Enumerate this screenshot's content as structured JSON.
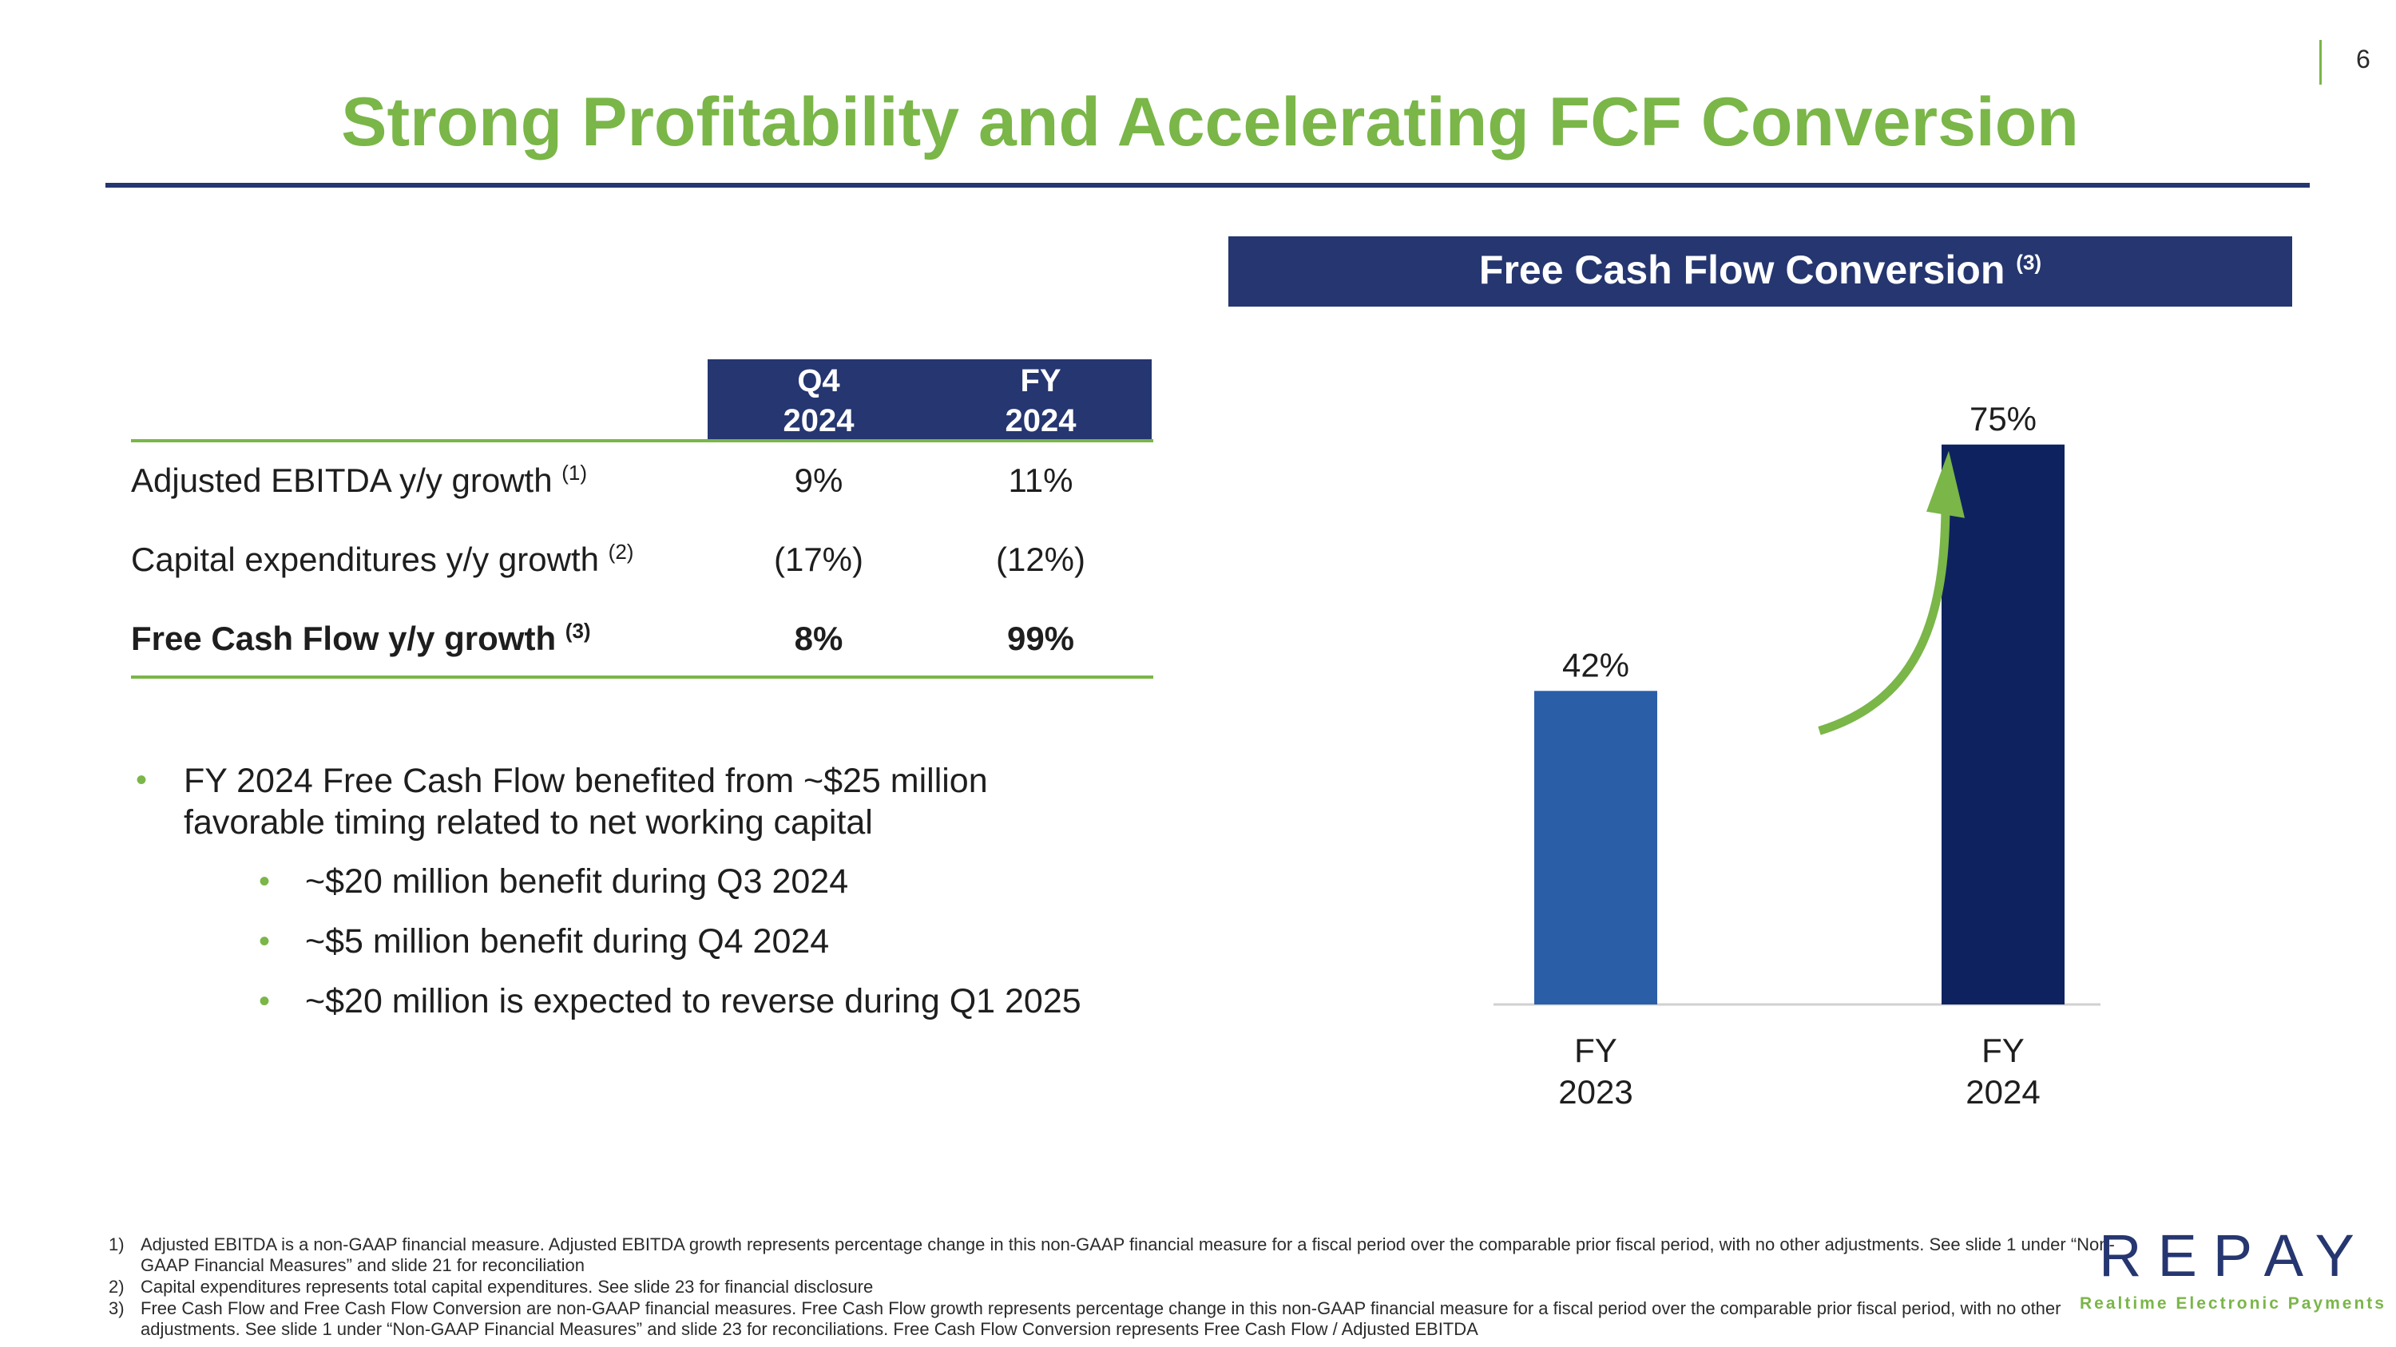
{
  "page_number": "6",
  "title": "Strong Profitability and Accelerating FCF Conversion",
  "table": {
    "headers": [
      "Q4\n2024",
      "FY\n2024"
    ],
    "rows": [
      {
        "label": "Adjusted EBITDA y/y growth",
        "note": "(1)",
        "q4": "9%",
        "fy": "11%",
        "bold": false
      },
      {
        "label": "Capital expenditures y/y growth",
        "note": "(2)",
        "q4": "(17%)",
        "fy": "(12%)",
        "bold": false
      },
      {
        "label": "Free Cash Flow y/y growth",
        "note": "(3)",
        "q4": "8%",
        "fy": "99%",
        "bold": true
      }
    ]
  },
  "bullets": {
    "main_line1": "FY 2024 Free Cash Flow benefited from ~$25 million",
    "main_line2": "favorable timing related to net working capital",
    "sub": [
      "~$20 million benefit during Q3 2024",
      "~$5 million benefit during Q4 2024",
      "~$20 million is expected to reverse during Q1 2025"
    ]
  },
  "chart_header": {
    "title": "Free Cash Flow Conversion",
    "note": "(3)"
  },
  "chart_data": {
    "type": "bar",
    "title": "Free Cash Flow Conversion (3)",
    "categories": [
      "FY 2023",
      "FY 2024"
    ],
    "category_lines": [
      [
        "FY",
        "2023"
      ],
      [
        "FY",
        "2024"
      ]
    ],
    "values": [
      42,
      75
    ],
    "value_labels": [
      "42%",
      "75%"
    ],
    "colors": [
      "#2a5fa8",
      "#0f2260"
    ],
    "ylim": [
      0,
      80
    ],
    "xlabel": "",
    "ylabel": "",
    "annotation": "growth arrow"
  },
  "footnotes": [
    {
      "num": "1)",
      "text": "Adjusted EBITDA is a non-GAAP financial measure. Adjusted EBITDA growth represents percentage change in this non-GAAP financial measure for a fiscal period over the comparable prior fiscal period, with no other adjustments. See slide 1 under “Non-GAAP Financial Measures” and slide 21 for reconciliation"
    },
    {
      "num": "2)",
      "text": "Capital expenditures represents total capital expenditures. See slide 23 for financial disclosure"
    },
    {
      "num": "3)",
      "text": "Free Cash Flow and Free Cash Flow Conversion are non-GAAP financial measures.  Free Cash Flow growth represents percentage change in this non-GAAP financial measure for a fiscal period over the comparable prior fiscal period, with no other adjustments. See slide 1 under “Non-GAAP Financial Measures” and slide 23 for reconciliations. Free Cash Flow Conversion represents Free Cash Flow / Adjusted EBITDA"
    }
  ],
  "logo": {
    "name": "REPAY",
    "tagline": "Realtime Electronic Payments"
  },
  "colors": {
    "green": "#7ab648",
    "navy": "#253670"
  }
}
